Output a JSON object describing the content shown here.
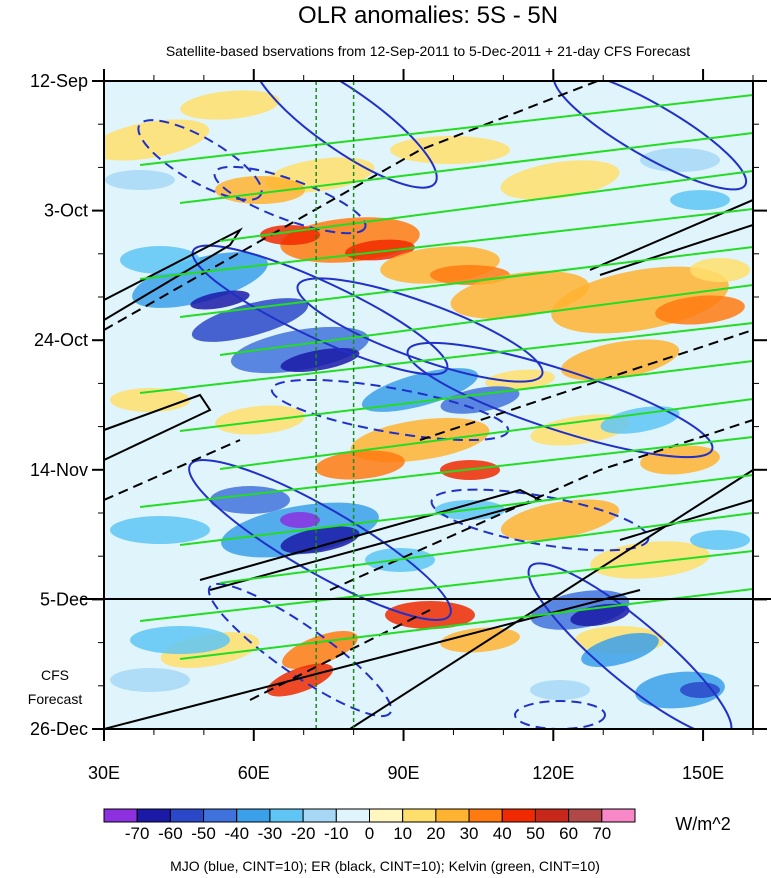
{
  "chart_data": {
    "type": "heatmap",
    "title": "OLR anomalies: 5S - 5N",
    "subtitle": "Satellite-based bservations from 12-Sep-2011 to 5-Dec-2011 + 21-day CFS Forecast",
    "x_axis": {
      "ticks": [
        {
          "value": 30,
          "label": "30E"
        },
        {
          "value": 60,
          "label": "60E"
        },
        {
          "value": 90,
          "label": "90E"
        },
        {
          "value": 120,
          "label": "120E"
        },
        {
          "value": 150,
          "label": "150E"
        }
      ],
      "range": [
        30,
        160
      ],
      "minor_step": 10
    },
    "y_axis": {
      "ticks": [
        {
          "value": 0,
          "label": "12-Sep"
        },
        {
          "value": 21,
          "label": "3-Oct"
        },
        {
          "value": 42,
          "label": "24-Oct"
        },
        {
          "value": 63,
          "label": "14-Nov"
        },
        {
          "value": 84,
          "label": "5-Dec"
        },
        {
          "value": 105,
          "label": "26-Dec"
        }
      ],
      "range": [
        0,
        105
      ],
      "minor_step": 7,
      "unit": "days since 12-Sep-2011 (downward)"
    },
    "forecast_label": [
      "CFS",
      "Forecast"
    ],
    "forecast_start_day": 84,
    "reference_lines_lon": [
      72.5,
      80
    ],
    "colorbar": {
      "unit": "W/m^2",
      "labels": [
        "-70",
        "-60",
        "-50",
        "-40",
        "-30",
        "-20",
        "-10",
        "0",
        "10",
        "20",
        "30",
        "40",
        "50",
        "60",
        "70"
      ],
      "colors": [
        "#8c30e0",
        "#1a1aa6",
        "#2a48c8",
        "#3f72dc",
        "#3aa0ea",
        "#5ec5f4",
        "#a6d8f6",
        "#e0f4fb",
        "#fff6c0",
        "#ffdf6c",
        "#ffb330",
        "#ff7a10",
        "#f02a00",
        "#c8281a",
        "#b04848",
        "#f888c8"
      ]
    },
    "contour_legend": "MJO (blue, CINT=10); ER (black, CINT=10); Kelvin (green, CINT=10)",
    "contour_colors": {
      "mjo": "#2030c8",
      "er": "#000000",
      "kelvin": "#22dd22"
    }
  }
}
